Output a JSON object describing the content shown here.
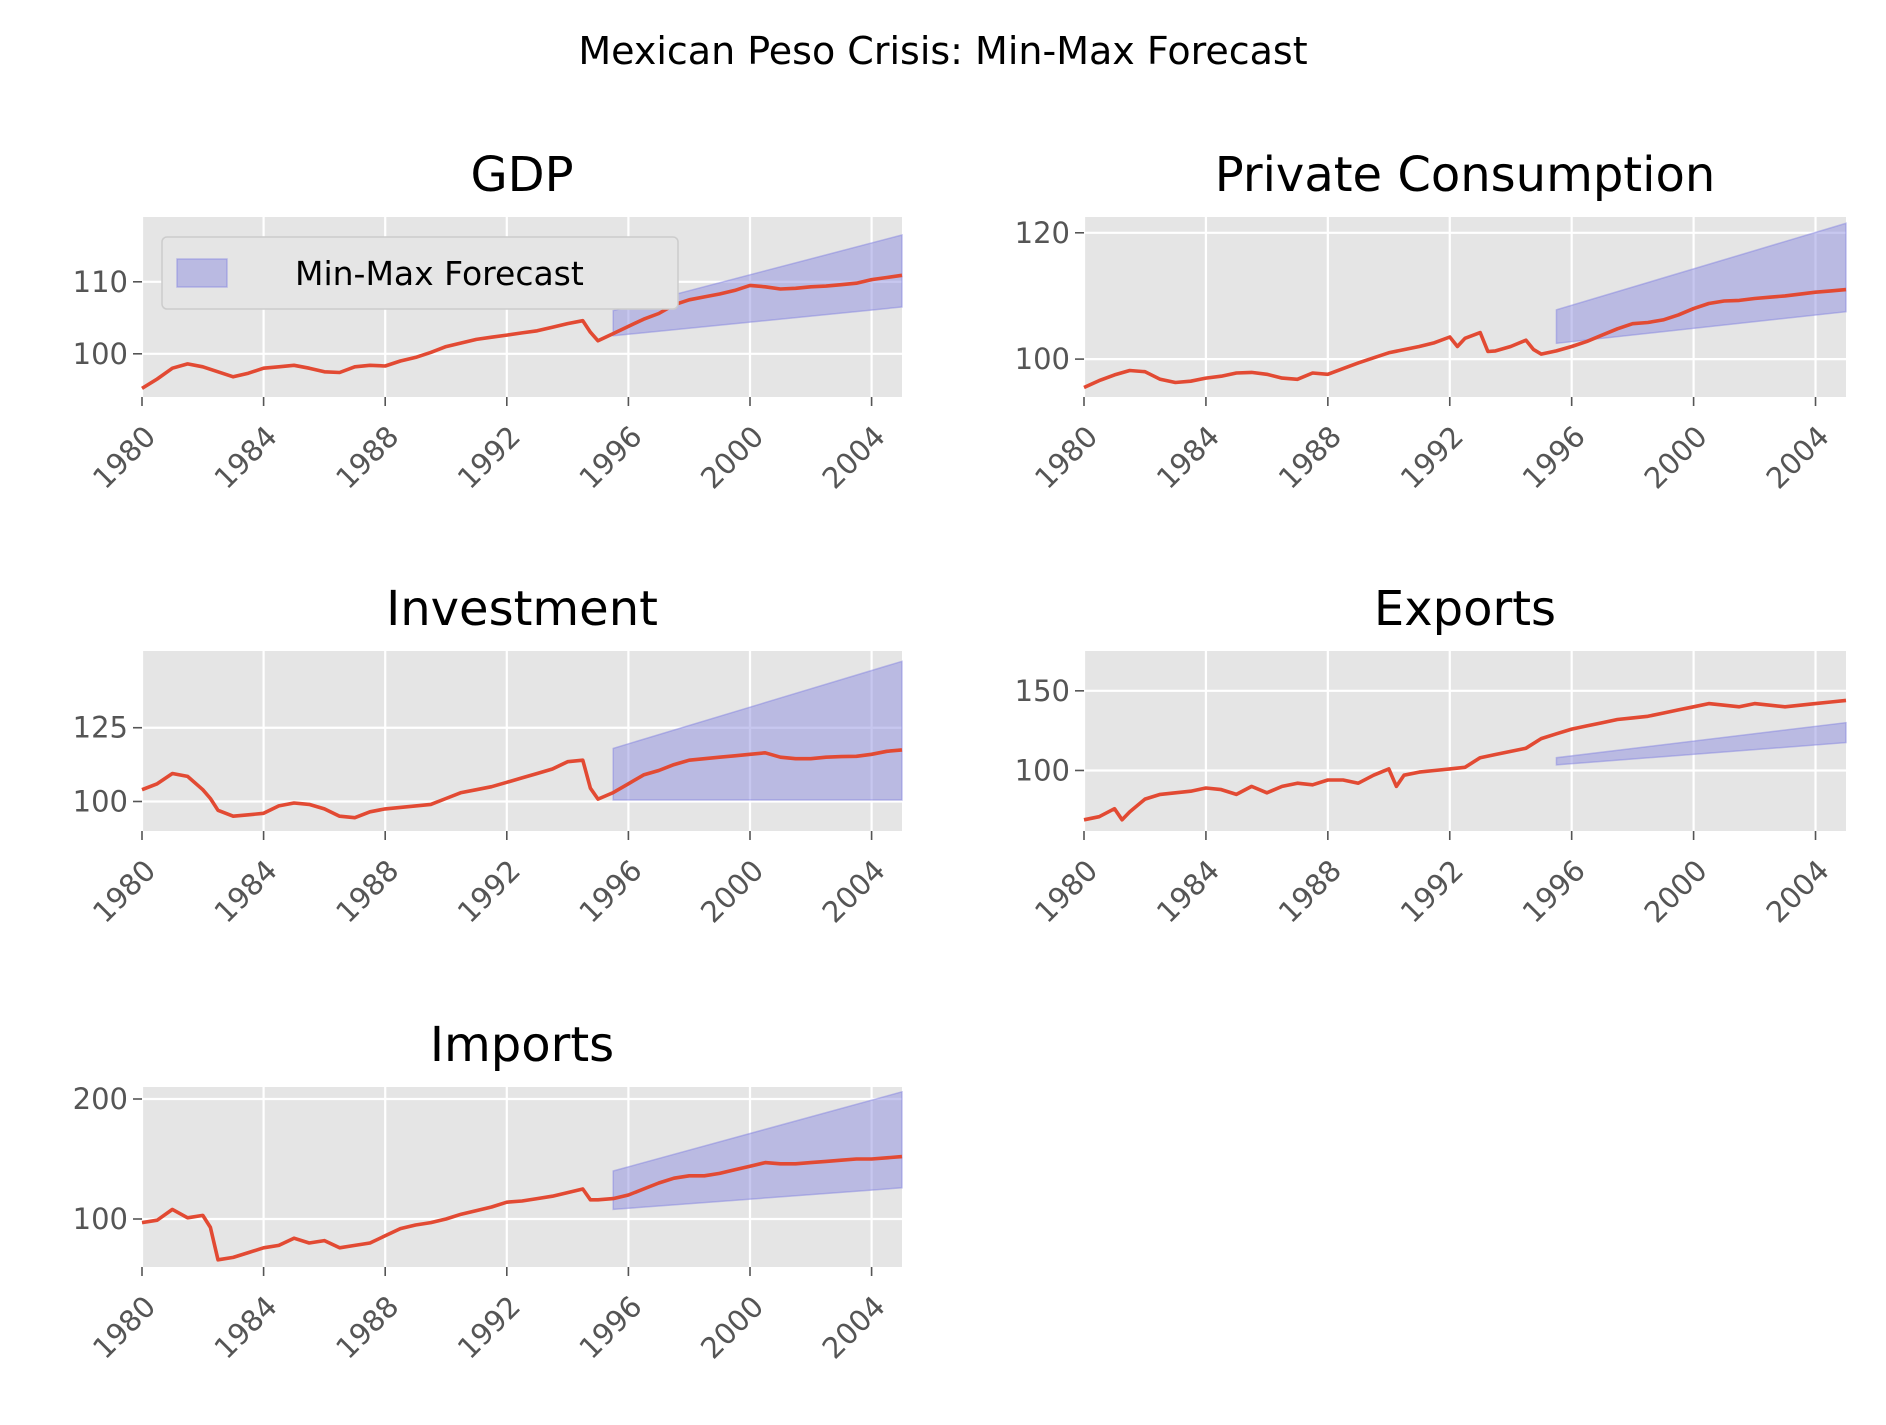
{
  "figure": {
    "suptitle": "Mexican Peso Crisis: Min-Max Forecast"
  },
  "chart_data": [
    {
      "type": "line",
      "title": "GDP",
      "xlim": [
        1980,
        2005
      ],
      "ylim": [
        94,
        119
      ],
      "xticks": [
        "1980",
        "1984",
        "1988",
        "1992",
        "1996",
        "2000",
        "2004"
      ],
      "yticks": [
        "100",
        "110"
      ],
      "legend": {
        "label": "Min-Max Forecast",
        "position": "upper-left"
      },
      "band": {
        "name": "Min-Max Forecast",
        "x": [
          1995.5,
          2005
        ],
        "lower": [
          102.5,
          106.5
        ],
        "upper": [
          106,
          116.5
        ]
      },
      "series": [
        {
          "x": [
            1980,
            1980.5,
            1981,
            1981.5,
            1982,
            1982.5,
            1983,
            1983.5,
            1984,
            1984.5,
            1985,
            1985.5,
            1986,
            1986.5,
            1987,
            1987.5,
            1988,
            1988.5,
            1989,
            1989.5,
            1990,
            1990.5,
            1991,
            1991.5,
            1992,
            1992.5,
            1993,
            1993.5,
            1994,
            1994.5,
            1994.75,
            1995,
            1995.5,
            1996,
            1996.5,
            1997,
            1997.5,
            1998,
            1998.5,
            1999,
            1999.5,
            2000,
            2000.5,
            2001,
            2001.5,
            2002,
            2002.5,
            2003,
            2003.5,
            2004,
            2004.5,
            2005
          ],
          "y": [
            95.2,
            96.5,
            98,
            98.6,
            98.2,
            97.5,
            96.8,
            97.3,
            98,
            98.2,
            98.4,
            98,
            97.5,
            97.4,
            98.2,
            98.4,
            98.3,
            99,
            99.5,
            100.2,
            101,
            101.5,
            102,
            102.3,
            102.6,
            102.9,
            103.2,
            103.7,
            104.2,
            104.6,
            103,
            101.8,
            102.8,
            103.8,
            104.8,
            105.6,
            106.8,
            107.5,
            107.9,
            108.3,
            108.8,
            109.5,
            109.3,
            109,
            109.1,
            109.3,
            109.4,
            109.6,
            109.8,
            110.3,
            110.6,
            110.9
          ]
        }
      ]
    },
    {
      "type": "line",
      "title": "Private Consumption",
      "xlim": [
        1980,
        2005
      ],
      "ylim": [
        94,
        122.5
      ],
      "xticks": [
        "1980",
        "1984",
        "1988",
        "1992",
        "1996",
        "2000",
        "2004"
      ],
      "yticks": [
        "100",
        "120"
      ],
      "band": {
        "name": "Min-Max Forecast",
        "x": [
          1995.5,
          2005
        ],
        "lower": [
          102.5,
          107.5
        ],
        "upper": [
          107.8,
          121.5
        ]
      },
      "series": [
        {
          "x": [
            1980,
            1980.5,
            1981,
            1981.5,
            1982,
            1982.5,
            1983,
            1983.5,
            1984,
            1984.5,
            1985,
            1985.5,
            1986,
            1986.5,
            1987,
            1987.5,
            1988,
            1988.5,
            1989,
            1989.5,
            1990,
            1990.5,
            1991,
            1991.5,
            1992,
            1992.25,
            1992.5,
            1993,
            1993.25,
            1993.5,
            1994,
            1994.5,
            1994.75,
            1995,
            1995.5,
            1996,
            1996.5,
            1997,
            1997.5,
            1998,
            1998.5,
            1999,
            1999.5,
            2000,
            2000.5,
            2001,
            2001.5,
            2002,
            2002.5,
            2003,
            2003.5,
            2004,
            2004.5,
            2005
          ],
          "y": [
            95.5,
            96.6,
            97.5,
            98.2,
            98,
            96.8,
            96.3,
            96.5,
            97,
            97.3,
            97.8,
            97.9,
            97.6,
            97,
            96.8,
            97.8,
            97.6,
            98.5,
            99.4,
            100.2,
            101,
            101.5,
            102,
            102.6,
            103.5,
            102,
            103.3,
            104.2,
            101.2,
            101.3,
            102,
            103,
            101.5,
            100.8,
            101.3,
            102,
            102.8,
            103.8,
            104.8,
            105.6,
            105.8,
            106.2,
            107,
            108,
            108.8,
            109.2,
            109.3,
            109.6,
            109.8,
            110,
            110.3,
            110.6,
            110.8,
            111
          ]
        }
      ]
    },
    {
      "type": "line",
      "title": "Investment",
      "xlim": [
        1980,
        2005
      ],
      "ylim": [
        90,
        151
      ],
      "xticks": [
        "1980",
        "1984",
        "1988",
        "1992",
        "1996",
        "2000",
        "2004"
      ],
      "yticks": [
        "100",
        "125"
      ],
      "band": {
        "name": "Min-Max Forecast",
        "x": [
          1995.5,
          2005
        ],
        "lower": [
          100.5,
          100.5
        ],
        "upper": [
          118,
          147.5
        ]
      },
      "series": [
        {
          "x": [
            1980,
            1980.5,
            1981,
            1981.5,
            1982,
            1982.25,
            1982.5,
            1983,
            1983.5,
            1984,
            1984.5,
            1985,
            1985.5,
            1986,
            1986.5,
            1987,
            1987.5,
            1988,
            1988.5,
            1989,
            1989.5,
            1990,
            1990.5,
            1991,
            1991.5,
            1992,
            1992.5,
            1993,
            1993.5,
            1994,
            1994.5,
            1994.75,
            1995,
            1995.5,
            1996,
            1996.5,
            1997,
            1997.5,
            1998,
            1998.5,
            1999,
            1999.5,
            2000,
            2000.5,
            2001,
            2001.5,
            2002,
            2002.5,
            2003,
            2003.5,
            2004,
            2004.5,
            2005
          ],
          "y": [
            104,
            106,
            109.5,
            108.5,
            104,
            101,
            97,
            95,
            95.5,
            96,
            98.5,
            99.5,
            99,
            97.5,
            95,
            94.5,
            96.5,
            97.5,
            98,
            98.5,
            99,
            101,
            103,
            104,
            105,
            106.5,
            108,
            109.5,
            111,
            113.5,
            114,
            104.5,
            100.8,
            103,
            106,
            109,
            110.5,
            112.5,
            114,
            114.5,
            115,
            115.5,
            116,
            116.5,
            115,
            114.5,
            114.5,
            115,
            115.2,
            115.3,
            116,
            117,
            117.5
          ]
        }
      ]
    },
    {
      "type": "line",
      "title": "Exports",
      "xlim": [
        1980,
        2005
      ],
      "ylim": [
        62,
        175
      ],
      "xticks": [
        "1980",
        "1984",
        "1988",
        "1992",
        "1996",
        "2000",
        "2004"
      ],
      "yticks": [
        "100",
        "150"
      ],
      "band": {
        "name": "Min-Max Forecast",
        "x": [
          1995.5,
          2005
        ],
        "lower": [
          103.5,
          117.5
        ],
        "upper": [
          108,
          130
        ]
      },
      "series": [
        {
          "x": [
            1980,
            1980.5,
            1981,
            1981.25,
            1981.5,
            1982,
            1982.5,
            1983,
            1983.5,
            1984,
            1984.5,
            1985,
            1985.5,
            1986,
            1986.5,
            1987,
            1987.5,
            1988,
            1988.5,
            1989,
            1989.5,
            1990,
            1990.25,
            1990.5,
            1991,
            1991.5,
            1992,
            1992.5,
            1993,
            1993.5,
            1994,
            1994.5,
            1995,
            1995.5,
            1996,
            1996.5,
            1997,
            1997.5,
            1998,
            1998.5,
            1999,
            1999.5,
            2000,
            2000.5,
            2001,
            2001.5,
            2002,
            2002.5,
            2003,
            2003.5,
            2004,
            2004.5,
            2005
          ],
          "y": [
            69,
            71,
            76,
            69,
            74,
            82,
            85,
            86,
            87,
            89,
            88,
            85,
            90,
            86,
            90,
            92,
            91,
            94,
            94,
            92,
            97,
            101,
            90,
            97,
            99,
            100,
            101,
            102,
            108,
            110,
            112,
            114,
            120,
            123,
            126,
            128,
            130,
            132,
            133,
            134,
            136,
            138,
            140,
            142,
            141,
            140,
            142,
            141,
            140,
            141,
            142,
            143,
            144
          ]
        }
      ]
    },
    {
      "type": "line",
      "title": "Imports",
      "xlim": [
        1980,
        2005
      ],
      "ylim": [
        60,
        210
      ],
      "xticks": [
        "1980",
        "1984",
        "1988",
        "1992",
        "1996",
        "2000",
        "2004"
      ],
      "yticks": [
        "100",
        "200"
      ],
      "band": {
        "name": "Min-Max Forecast",
        "x": [
          1995.5,
          2005
        ],
        "lower": [
          108,
          126
        ],
        "upper": [
          140,
          206
        ]
      },
      "series": [
        {
          "x": [
            1980,
            1980.5,
            1981,
            1981.5,
            1982,
            1982.25,
            1982.5,
            1983,
            1983.5,
            1984,
            1984.5,
            1985,
            1985.5,
            1986,
            1986.5,
            1987,
            1987.5,
            1988,
            1988.5,
            1989,
            1989.5,
            1990,
            1990.5,
            1991,
            1991.5,
            1992,
            1992.5,
            1993,
            1993.5,
            1994,
            1994.5,
            1994.75,
            1995,
            1995.5,
            1996,
            1996.5,
            1997,
            1997.5,
            1998,
            1998.5,
            1999,
            1999.5,
            2000,
            2000.5,
            2001,
            2001.5,
            2002,
            2002.5,
            2003,
            2003.5,
            2004,
            2004.5,
            2005
          ],
          "y": [
            97,
            99,
            108,
            101,
            103,
            93,
            66,
            68,
            72,
            76,
            78,
            84,
            80,
            82,
            76,
            78,
            80,
            86,
            92,
            95,
            97,
            100,
            104,
            107,
            110,
            114,
            115,
            117,
            119,
            122,
            125,
            116,
            116,
            117,
            120,
            125,
            130,
            134,
            136,
            136,
            138,
            141,
            144,
            147,
            146,
            146,
            147,
            148,
            149,
            150,
            150,
            151,
            152
          ]
        }
      ]
    }
  ]
}
